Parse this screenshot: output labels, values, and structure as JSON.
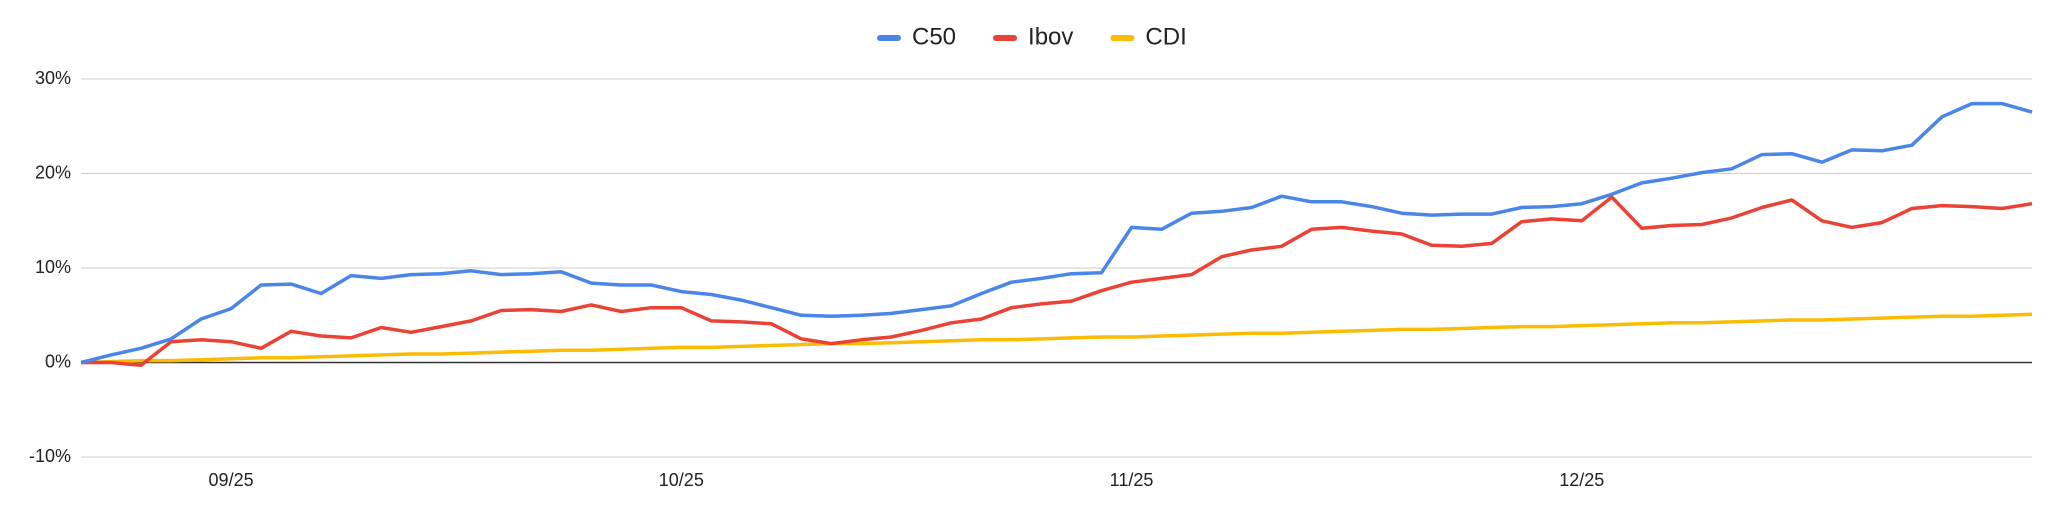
{
  "chart_data": {
    "type": "line",
    "categories": [
      null,
      null,
      null,
      null,
      null,
      "09/25",
      null,
      null,
      null,
      null,
      null,
      null,
      null,
      null,
      null,
      null,
      null,
      null,
      null,
      null,
      "10/25",
      null,
      null,
      null,
      null,
      null,
      null,
      null,
      null,
      null,
      null,
      null,
      null,
      null,
      null,
      "11/25",
      null,
      null,
      null,
      null,
      null,
      null,
      null,
      null,
      null,
      null,
      null,
      null,
      null,
      null,
      "12/25",
      null,
      null,
      null,
      null,
      null,
      null,
      null,
      null,
      null,
      null,
      null,
      null,
      null,
      null,
      null
    ],
    "series": [
      {
        "name": "C50",
        "color": "#4a86e8",
        "values": [
          0,
          0.8,
          1.5,
          2.5,
          4.6,
          5.7,
          8.2,
          8.3,
          7.3,
          9.2,
          8.9,
          9.3,
          9.4,
          9.7,
          9.3,
          9.4,
          9.6,
          8.4,
          8.2,
          8.2,
          7.5,
          7.2,
          6.6,
          5.8,
          5.0,
          4.9,
          5.0,
          5.2,
          5.6,
          6.0,
          7.3,
          8.5,
          8.9,
          9.4,
          9.5,
          14.3,
          14.1,
          15.8,
          16.0,
          16.4,
          17.6,
          17.0,
          17.0,
          16.5,
          15.8,
          15.6,
          15.7,
          15.7,
          16.4,
          16.5,
          16.8,
          17.8,
          19.0,
          19.5,
          20.1,
          20.5,
          22.0,
          22.1,
          21.2,
          22.5,
          22.4,
          23.0,
          26.0,
          27.4,
          27.4,
          26.5
        ]
      },
      {
        "name": "Ibov",
        "color": "#ea4335",
        "values": [
          0,
          0,
          -0.3,
          2.2,
          2.4,
          2.2,
          1.5,
          3.3,
          2.8,
          2.6,
          3.7,
          3.2,
          3.8,
          4.4,
          5.5,
          5.6,
          5.4,
          6.1,
          5.4,
          5.8,
          5.8,
          4.4,
          4.3,
          4.1,
          2.5,
          2.0,
          2.4,
          2.7,
          3.4,
          4.2,
          4.6,
          5.8,
          6.2,
          6.5,
          7.6,
          8.5,
          8.9,
          9.3,
          11.2,
          11.9,
          12.3,
          14.1,
          14.3,
          13.9,
          13.6,
          12.4,
          12.3,
          12.6,
          14.9,
          15.2,
          15.0,
          17.5,
          14.2,
          14.5,
          14.6,
          15.3,
          16.4,
          17.2,
          15.0,
          14.3,
          14.8,
          16.3,
          16.6,
          16.5,
          16.3,
          16.8
        ]
      },
      {
        "name": "CDI",
        "color": "#fbbc04",
        "values": [
          0,
          0.1,
          0.2,
          0.2,
          0.3,
          0.4,
          0.5,
          0.5,
          0.6,
          0.7,
          0.8,
          0.9,
          0.9,
          1.0,
          1.1,
          1.2,
          1.3,
          1.3,
          1.4,
          1.5,
          1.6,
          1.6,
          1.7,
          1.8,
          1.9,
          2.0,
          2.0,
          2.1,
          2.2,
          2.3,
          2.4,
          2.4,
          2.5,
          2.6,
          2.7,
          2.7,
          2.8,
          2.9,
          3.0,
          3.1,
          3.1,
          3.2,
          3.3,
          3.4,
          3.5,
          3.5,
          3.6,
          3.7,
          3.8,
          3.8,
          3.9,
          4.0,
          4.1,
          4.2,
          4.2,
          4.3,
          4.4,
          4.5,
          4.5,
          4.6,
          4.7,
          4.8,
          4.9,
          4.9,
          5.0,
          5.1
        ]
      }
    ],
    "ylim": [
      -10,
      30
    ],
    "yticks": [
      {
        "value": -10,
        "label": "-10%"
      },
      {
        "value": 0,
        "label": "0%"
      },
      {
        "value": 10,
        "label": "10%"
      },
      {
        "value": 20,
        "label": "20%"
      },
      {
        "value": 30,
        "label": "30%"
      }
    ],
    "grid": true,
    "legend": "top"
  }
}
